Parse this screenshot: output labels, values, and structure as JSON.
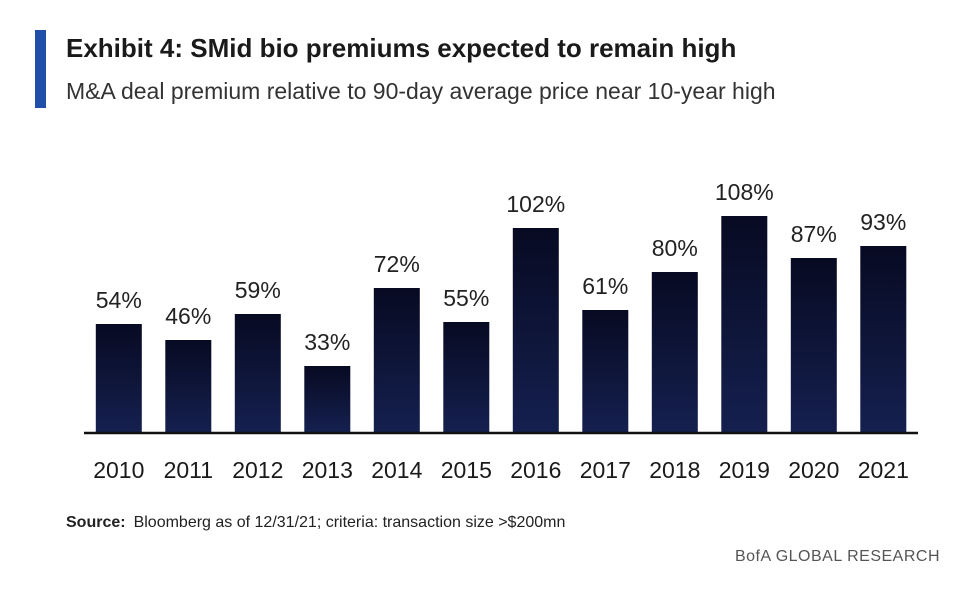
{
  "header": {
    "title": "Exhibit 4: SMid bio premiums expected to remain high",
    "subtitle": "M&A deal premium relative to 90-day average price near 10-year high"
  },
  "footer": {
    "source_label": "Source:",
    "source_text": "Bloomberg as of 12/31/21; criteria: transaction size >$200mn",
    "brand": "BofA GLOBAL RESEARCH"
  },
  "colors": {
    "accent": "#1f4fa8",
    "bar_fill": "#0c1030",
    "axis": "#111111"
  },
  "chart_data": {
    "type": "bar",
    "categories": [
      "2010",
      "2011",
      "2012",
      "2013",
      "2014",
      "2015",
      "2016",
      "2017",
      "2018",
      "2019",
      "2020",
      "2021"
    ],
    "values": [
      54,
      46,
      59,
      33,
      72,
      55,
      102,
      61,
      80,
      108,
      87,
      93
    ],
    "value_suffix": "%",
    "ylim": [
      0,
      108
    ],
    "grid": false,
    "legend": "none",
    "title": "Exhibit 4: SMid bio premiums expected to remain high",
    "subtitle": "M&A deal premium relative to 90-day average price near 10-year high",
    "xlabel": "",
    "ylabel": ""
  }
}
